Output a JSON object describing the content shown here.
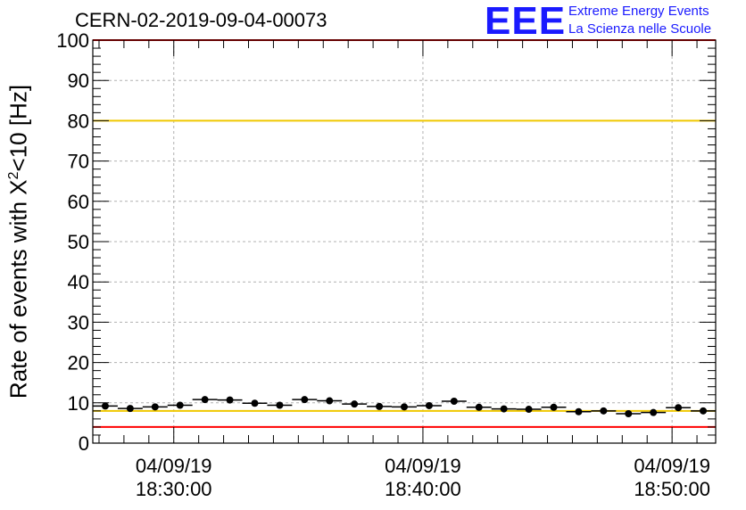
{
  "header": {
    "title": "CERN-02-2019-09-04-00073",
    "logo_text": "EEE",
    "logo_line1": "Extreme Energy Events",
    "logo_line2": "La Scienza nelle Scuole"
  },
  "chart_data": {
    "type": "scatter",
    "ylabel_prefix": "Rate of events with X",
    "ylabel_sup": "2",
    "ylabel_suffix": "<10 [Hz]",
    "ylim": [
      0,
      100
    ],
    "yticks": [
      0,
      10,
      20,
      30,
      40,
      50,
      60,
      70,
      80,
      90,
      100
    ],
    "grid": true,
    "xlim_minutes": [
      26.75,
      51.75
    ],
    "xticks": [
      {
        "minute": 30,
        "date": "04/09/19",
        "time": "18:30:00"
      },
      {
        "minute": 40,
        "date": "04/09/19",
        "time": "18:40:00"
      },
      {
        "minute": 50,
        "date": "04/09/19",
        "time": "18:50:00"
      }
    ],
    "bin_width_minutes": 1,
    "points": [
      {
        "x": 27.25,
        "y": 9.2
      },
      {
        "x": 28.25,
        "y": 8.6
      },
      {
        "x": 29.25,
        "y": 9.0
      },
      {
        "x": 30.25,
        "y": 9.4
      },
      {
        "x": 31.25,
        "y": 10.8
      },
      {
        "x": 32.25,
        "y": 10.7
      },
      {
        "x": 33.25,
        "y": 9.9
      },
      {
        "x": 34.25,
        "y": 9.4
      },
      {
        "x": 35.25,
        "y": 10.8
      },
      {
        "x": 36.25,
        "y": 10.5
      },
      {
        "x": 37.25,
        "y": 9.7
      },
      {
        "x": 38.25,
        "y": 9.1
      },
      {
        "x": 39.25,
        "y": 9.0
      },
      {
        "x": 40.25,
        "y": 9.3
      },
      {
        "x": 41.25,
        "y": 10.4
      },
      {
        "x": 42.25,
        "y": 8.9
      },
      {
        "x": 43.25,
        "y": 8.5
      },
      {
        "x": 44.25,
        "y": 8.4
      },
      {
        "x": 45.25,
        "y": 8.9
      },
      {
        "x": 46.25,
        "y": 7.8
      },
      {
        "x": 47.25,
        "y": 8.0
      },
      {
        "x": 48.25,
        "y": 7.3
      },
      {
        "x": 49.25,
        "y": 7.6
      },
      {
        "x": 50.25,
        "y": 8.8
      },
      {
        "x": 51.25,
        "y": 8.0
      }
    ],
    "reference_lines": [
      {
        "y": 100,
        "color": "#ff0000"
      },
      {
        "y": 80,
        "color": "#f0c800"
      },
      {
        "y": 8,
        "color": "#f0c800"
      },
      {
        "y": 4,
        "color": "#ff0000"
      }
    ]
  }
}
